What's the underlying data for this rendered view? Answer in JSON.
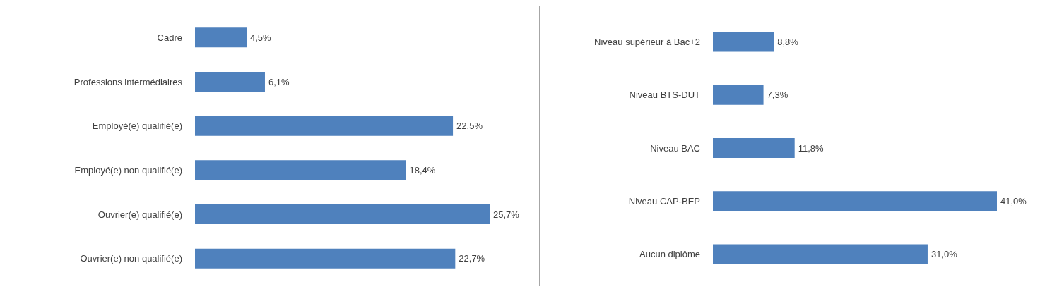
{
  "chart_data": [
    {
      "type": "bar",
      "orientation": "horizontal",
      "categories": [
        "Cadre",
        "Professions intermédiaires",
        "Employé(e) qualifié(e)",
        "Employé(e) non qualifié(e)",
        "Ouvrier(e) qualifié(e)",
        "Ouvrier(e) non qualifié(e)"
      ],
      "series": [
        {
          "color": "#4f81bd",
          "values": [
            4.5,
            6.1,
            22.5,
            18.4,
            25.7,
            22.7
          ],
          "value_labels": [
            "4,5%",
            "6,1%",
            "22,5%",
            "18,4%",
            "25,7%",
            "22,7%"
          ]
        }
      ]
    },
    {
      "type": "bar",
      "orientation": "horizontal",
      "categories": [
        "Niveau supérieur à Bac+2",
        "Niveau BTS-DUT",
        "Niveau BAC",
        "Niveau CAP-BEP",
        "Aucun diplôme"
      ],
      "series": [
        {
          "color": "#4f81bd",
          "values": [
            8.8,
            7.3,
            11.8,
            41.0,
            31.0
          ],
          "value_labels": [
            "8,8%",
            "7,3%",
            "11,8%",
            "41,0%",
            "31,0%"
          ]
        }
      ]
    }
  ]
}
